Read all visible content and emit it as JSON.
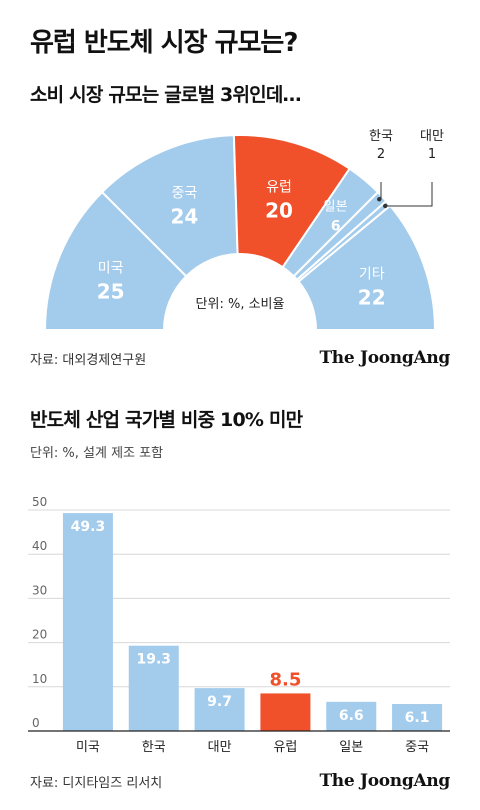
{
  "title": "유럽 반도체 시장 규모는?",
  "chart_data": [
    {
      "type": "pie",
      "title": "소비 시장 규모는 글로벌 3위인데…",
      "center_label": "단위: %, 소비율",
      "slices": [
        {
          "label": "미국",
          "value": 25,
          "color": "#a3cbec"
        },
        {
          "label": "중국",
          "value": 24,
          "color": "#a3cbec"
        },
        {
          "label": "유럽",
          "value": 20,
          "color": "#f0502a"
        },
        {
          "label": "일본",
          "value": 6,
          "color": "#a3cbec"
        },
        {
          "label": "한국",
          "value": 2,
          "color": "#a3cbec"
        },
        {
          "label": "대만",
          "value": 1,
          "color": "#a3cbec"
        },
        {
          "label": "기타",
          "value": 22,
          "color": "#a3cbec"
        }
      ],
      "source": "자료: 대외경제연구원"
    },
    {
      "type": "bar",
      "title": "반도체 산업 국가별 비중 10% 미만",
      "unit_label": "단위: %, 설계 제조 포함",
      "categories": [
        "미국",
        "한국",
        "대만",
        "유럽",
        "일본",
        "중국"
      ],
      "values": [
        49.3,
        19.3,
        9.7,
        8.5,
        6.6,
        6.1
      ],
      "value_labels": [
        "49.3",
        "19.3",
        "9.7",
        "8.5",
        "6.6",
        "6.1"
      ],
      "highlight_index": 3,
      "ylim": [
        0,
        50
      ],
      "yticks": [
        0,
        10,
        20,
        30,
        40,
        50
      ],
      "colors": {
        "bar": "#a3cbec",
        "highlight": "#f0502a"
      },
      "source": "자료: 디지타임즈 리서치"
    }
  ],
  "brand": "The JoongAng"
}
